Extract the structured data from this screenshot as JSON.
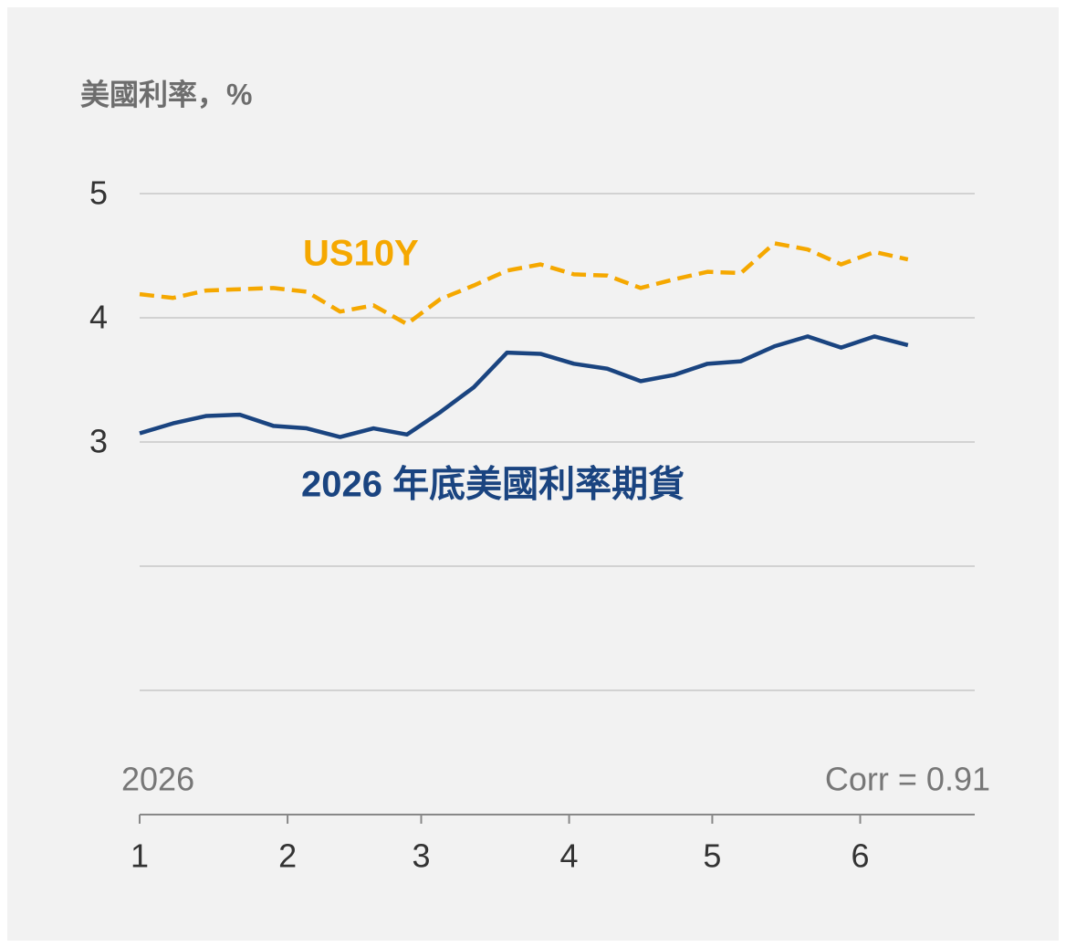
{
  "chart_data": {
    "type": "line",
    "title": "美國利率，%",
    "xlabel": "2026",
    "annotations": [
      "Corr = 0.91"
    ],
    "x": [
      0,
      7,
      14,
      21,
      28,
      35,
      42,
      49,
      56,
      63,
      70,
      77,
      84,
      91,
      98,
      105,
      112,
      119,
      126,
      133,
      140,
      147,
      154,
      161
    ],
    "series": [
      {
        "name": "US10Y",
        "color": "#f5a800",
        "dashed": true,
        "values": [
          4.19,
          4.16,
          4.22,
          4.23,
          4.24,
          4.21,
          4.05,
          4.1,
          3.95,
          4.15,
          4.26,
          4.38,
          4.43,
          4.35,
          4.34,
          4.24,
          4.31,
          4.37,
          4.36,
          4.6,
          4.55,
          4.43,
          4.53,
          4.47
        ]
      },
      {
        "name": "2026 年底美國利率期貨",
        "color": "#1a4480",
        "dashed": false,
        "values": [
          3.07,
          3.15,
          3.21,
          3.22,
          3.13,
          3.11,
          3.04,
          3.11,
          3.06,
          3.24,
          3.44,
          3.72,
          3.71,
          3.63,
          3.59,
          3.49,
          3.54,
          3.63,
          3.65,
          3.77,
          3.85,
          3.76,
          3.85,
          3.78
        ]
      }
    ],
    "xlim": [
      0,
      175
    ],
    "xticks": [
      {
        "value": 0,
        "label": "1"
      },
      {
        "value": 31,
        "label": "2"
      },
      {
        "value": 59,
        "label": "3"
      },
      {
        "value": 90,
        "label": "4"
      },
      {
        "value": 120,
        "label": "5"
      },
      {
        "value": 151,
        "label": "6"
      }
    ],
    "ylim": [
      0,
      5
    ],
    "yticks": [
      3,
      4,
      5
    ],
    "ygrid": [
      1,
      2,
      3,
      4,
      5
    ],
    "grid": true
  }
}
